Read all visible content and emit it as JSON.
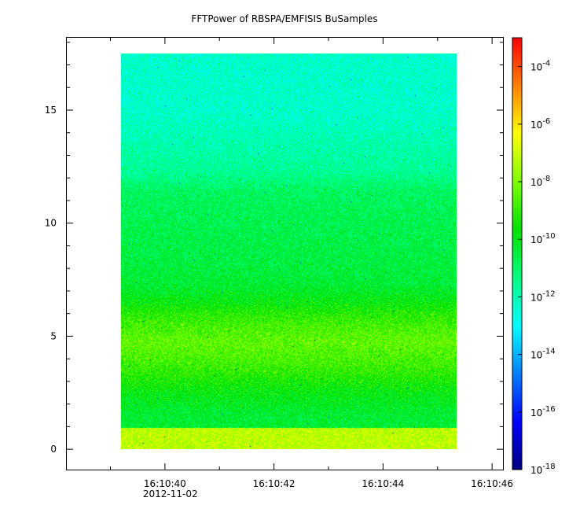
{
  "chart_data": {
    "type": "heatmap",
    "title": "FFTPower of RBSPA/EMFISIS  BuSamples",
    "xlabel": "",
    "ylabel": "",
    "x_ticks": [
      "16:10:40",
      "16:10:42",
      "16:10:44",
      "16:10:46"
    ],
    "x_tick_values_sec": [
      40,
      42,
      44,
      46
    ],
    "x_minor_tick_values_sec": [
      39,
      41,
      43,
      45
    ],
    "x_date_label": "2012-11-02",
    "x_range_sec": [
      38.2,
      46.2
    ],
    "data_x_range_sec": [
      39.2,
      45.35
    ],
    "y_ticks": [
      "0",
      "5",
      "10",
      "15"
    ],
    "y_tick_values": [
      0,
      5,
      10,
      15
    ],
    "y_range": [
      -0.9,
      18.2
    ],
    "data_y_range": [
      0,
      17.5
    ],
    "colorbar": {
      "scale": "log",
      "range": [
        1e-18,
        0.001
      ],
      "tick_values": [
        1e-18,
        1e-16,
        1e-14,
        1e-12,
        1e-10,
        1e-08,
        1e-06,
        0.0001
      ],
      "tick_base": "10",
      "tick_exponents": [
        "-18",
        "-16",
        "-14",
        "-12",
        "-10",
        "-8",
        "-6",
        "-4"
      ],
      "colormap": [
        "#00007f",
        "#0000ff",
        "#007fff",
        "#00ffff",
        "#00ff80",
        "#00e000",
        "#80ff00",
        "#ffff00",
        "#ff8000",
        "#ff0000"
      ]
    },
    "bands": [
      {
        "y_from": 0.0,
        "y_to": 0.95,
        "log_power": -7.2
      },
      {
        "y_from": 0.95,
        "y_to": 2.0,
        "log_power": -10.3
      },
      {
        "y_from": 2.0,
        "y_to": 3.0,
        "log_power": -9.8
      },
      {
        "y_from": 3.0,
        "y_to": 4.0,
        "log_power": -9.0
      },
      {
        "y_from": 4.0,
        "y_to": 5.5,
        "log_power": -8.4
      },
      {
        "y_from": 5.5,
        "y_to": 6.5,
        "log_power": -9.2
      },
      {
        "y_from": 6.5,
        "y_to": 8.0,
        "log_power": -10.3
      },
      {
        "y_from": 8.0,
        "y_to": 10.5,
        "log_power": -10.6
      },
      {
        "y_from": 10.5,
        "y_to": 12.3,
        "log_power": -10.9
      },
      {
        "y_from": 12.3,
        "y_to": 17.5,
        "log_power": -12.3
      }
    ]
  }
}
